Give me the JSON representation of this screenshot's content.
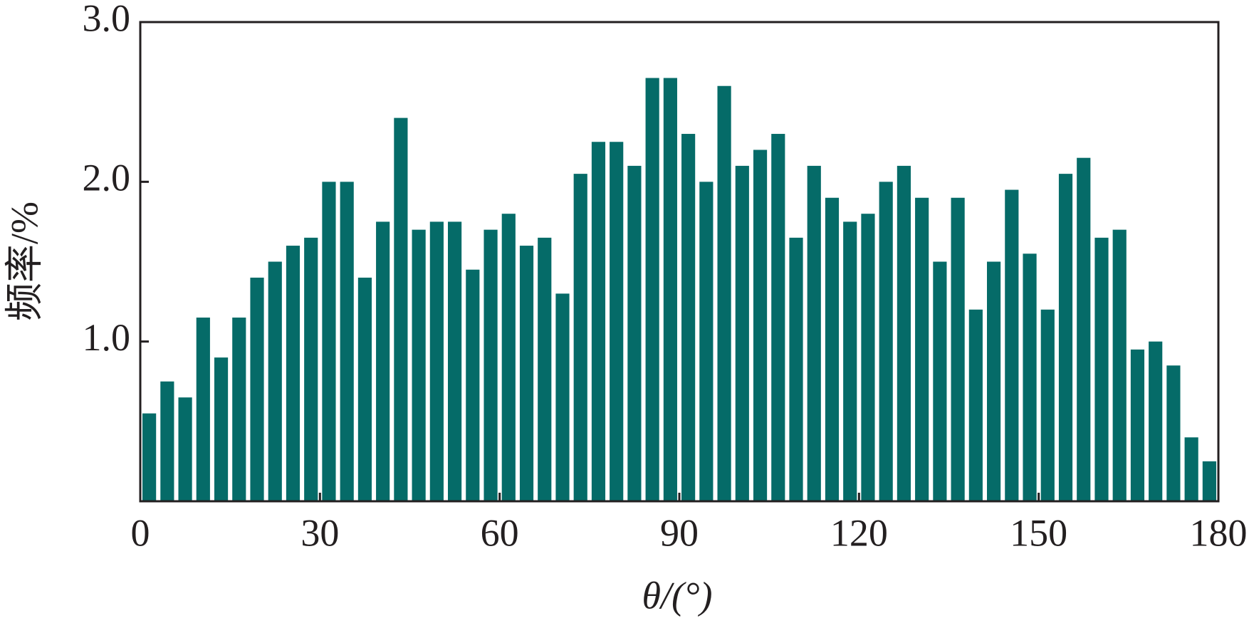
{
  "chart_data": {
    "type": "histogram",
    "x_label": "θ/(°)",
    "y_label": "频率/%",
    "bins": [
      0,
      3,
      6,
      9,
      12,
      15,
      18,
      21,
      24,
      27,
      30,
      33,
      36,
      39,
      42,
      45,
      48,
      51,
      54,
      57,
      60,
      63,
      66,
      69,
      72,
      75,
      78,
      81,
      84,
      87,
      90,
      93,
      96,
      99,
      102,
      105,
      108,
      111,
      114,
      117,
      120,
      123,
      126,
      129,
      132,
      135,
      138,
      141,
      144,
      147,
      150,
      153,
      156,
      159,
      162,
      165,
      168,
      171,
      174,
      177,
      180
    ],
    "values": [
      0.55,
      0.75,
      0.65,
      1.15,
      0.9,
      1.15,
      1.4,
      1.5,
      1.6,
      1.65,
      2.0,
      2.0,
      1.4,
      1.75,
      2.4,
      1.7,
      1.75,
      1.75,
      1.45,
      1.7,
      1.8,
      1.6,
      1.65,
      1.3,
      2.05,
      2.25,
      2.25,
      2.1,
      2.65,
      2.65,
      2.3,
      2.0,
      2.6,
      2.1,
      2.2,
      2.3,
      1.65,
      2.1,
      1.9,
      1.75,
      1.8,
      2.0,
      2.1,
      1.9,
      1.5,
      1.9,
      1.2,
      1.5,
      1.95,
      1.55,
      1.2,
      2.05,
      2.15,
      1.65,
      1.7,
      0.95,
      1.0,
      0.85,
      0.4,
      0.25
    ],
    "color": "#056b68",
    "xlim": [
      0,
      180
    ],
    "xticks": [
      0,
      30,
      60,
      90,
      120,
      150,
      180
    ],
    "ylim": [
      0,
      3
    ],
    "yticks": [
      {
        "value": 1,
        "label": "1.0"
      },
      {
        "value": 2,
        "label": "2.0"
      },
      {
        "value": 3,
        "label": "3.0"
      }
    ],
    "grid": false
  }
}
